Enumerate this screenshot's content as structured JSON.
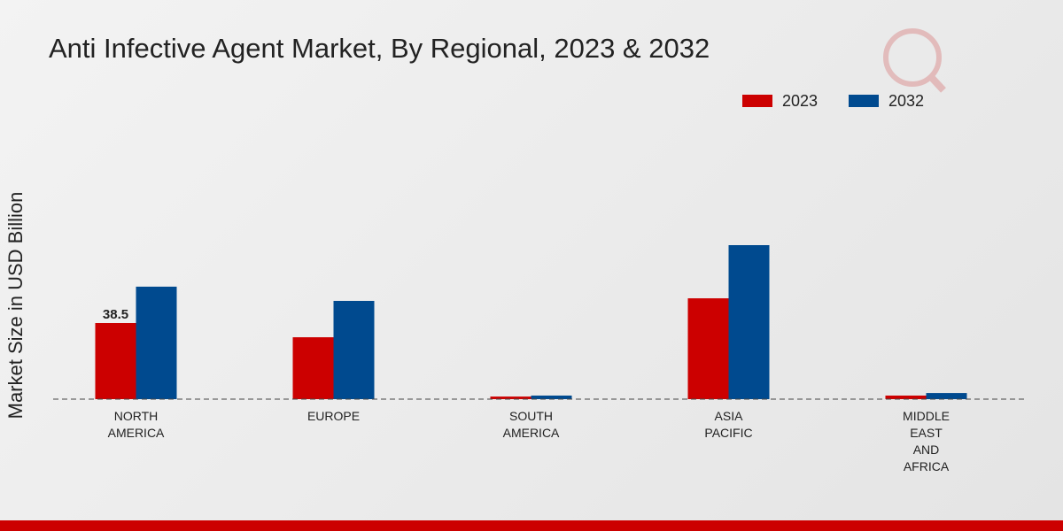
{
  "chart_data": {
    "type": "bar",
    "title": "Anti Infective Agent Market, By Regional, 2023 & 2032",
    "y_label": "Market Size in USD Billion",
    "categories": [
      "NORTH AMERICA",
      "EUROPE",
      "SOUTH AMERICA",
      "ASIA PACIFIC",
      "MIDDLE EAST AND AFRICA"
    ],
    "series": [
      {
        "name": "2023",
        "color": "#cc0000",
        "values": [
          38.5,
          31.3,
          1.3,
          51.0,
          1.8
        ]
      },
      {
        "name": "2032",
        "color": "#004a8f",
        "values": [
          56.9,
          49.7,
          1.8,
          77.9,
          3.1
        ]
      }
    ]
  }
}
